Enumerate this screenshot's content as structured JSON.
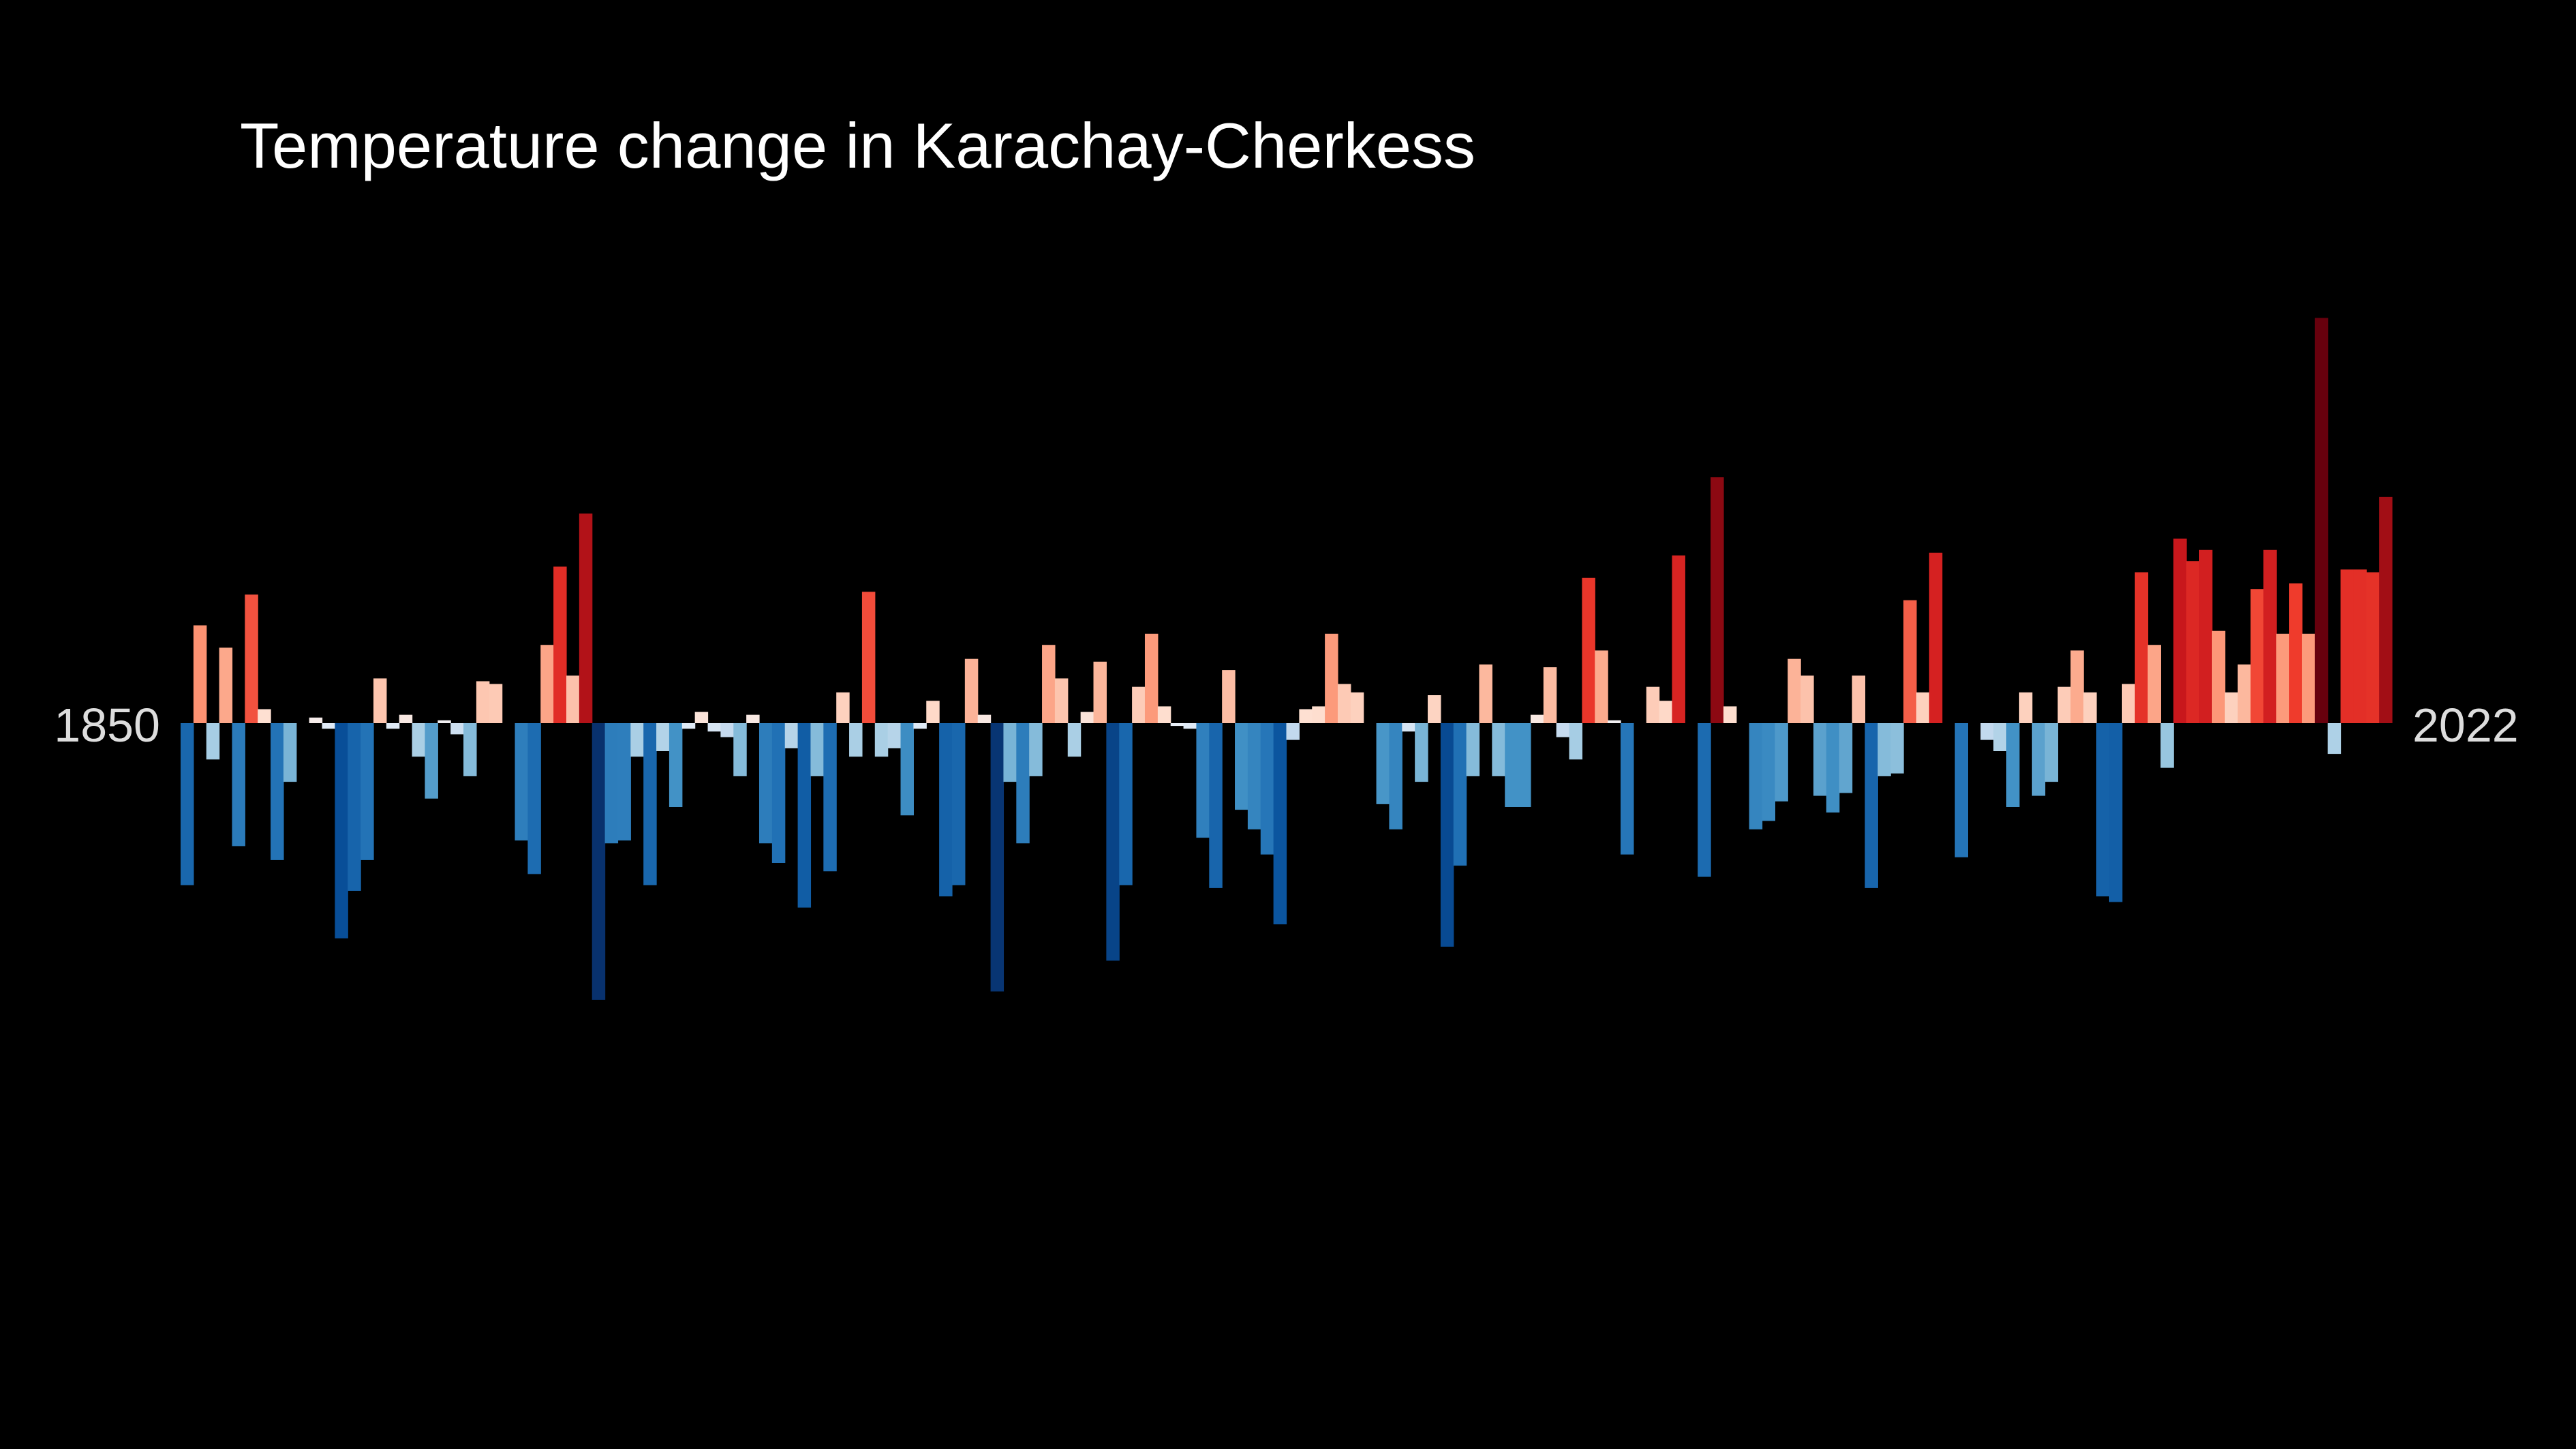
{
  "chart_data": {
    "type": "bar",
    "title": "Temperature change in Karachay-Cherkess",
    "x_start_label": "1850",
    "x_end_label": "2022",
    "x_start": 1850,
    "x_end": 2022,
    "ylim": [
      -1.6,
      1.6
    ],
    "grid": false,
    "legend": "none",
    "values": [
      -0.58,
      0.35,
      -0.13,
      0.27,
      -0.44,
      0.46,
      0.05,
      -0.49,
      -0.21,
      0.0,
      0.02,
      -0.02,
      -0.77,
      -0.6,
      -0.49,
      0.16,
      -0.02,
      0.03,
      -0.12,
      -0.27,
      0.01,
      -0.04,
      -0.19,
      0.15,
      0.14,
      0.0,
      -0.42,
      -0.54,
      0.28,
      0.56,
      0.17,
      0.75,
      -0.99,
      -0.43,
      -0.42,
      -0.12,
      -0.58,
      -0.1,
      -0.3,
      -0.02,
      0.04,
      -0.03,
      -0.05,
      -0.19,
      0.03,
      -0.43,
      -0.5,
      -0.09,
      -0.66,
      -0.19,
      -0.53,
      0.11,
      -0.12,
      0.47,
      -0.12,
      -0.09,
      -0.33,
      -0.02,
      0.08,
      -0.62,
      -0.58,
      0.23,
      0.03,
      -0.96,
      -0.21,
      -0.43,
      -0.19,
      0.28,
      0.16,
      -0.12,
      0.04,
      0.22,
      -0.85,
      -0.58,
      0.13,
      0.32,
      0.06,
      -0.01,
      -0.02,
      -0.41,
      -0.59,
      0.19,
      -0.31,
      -0.38,
      -0.47,
      -0.72,
      -0.06,
      0.05,
      0.06,
      0.32,
      0.14,
      0.11,
      0.0,
      -0.29,
      -0.38,
      -0.03,
      -0.21,
      0.1,
      -0.8,
      -0.51,
      -0.19,
      0.21,
      -0.19,
      -0.3,
      -0.3,
      0.03,
      0.2,
      -0.05,
      -0.13,
      0.52,
      0.26,
      0.01,
      -0.47,
      0.0,
      0.13,
      0.08,
      0.6,
      0.0,
      -0.55,
      0.88,
      0.06,
      0.0,
      -0.38,
      -0.35,
      -0.28,
      0.23,
      0.17,
      -0.26,
      -0.32,
      -0.25,
      0.17,
      -0.59,
      -0.19,
      -0.18,
      0.44,
      0.11,
      0.61,
      0.0,
      -0.48,
      0.0,
      -0.06,
      -0.1,
      -0.3,
      0.11,
      -0.26,
      -0.21,
      0.13,
      0.26,
      0.11,
      -0.62,
      -0.64,
      0.14,
      0.54,
      0.28,
      -0.16,
      0.66,
      0.58,
      0.62,
      0.33,
      0.11,
      0.21,
      0.48,
      0.62,
      0.32,
      0.5,
      0.32,
      1.45,
      -0.11,
      0.55,
      0.55,
      0.54,
      0.81
    ]
  }
}
